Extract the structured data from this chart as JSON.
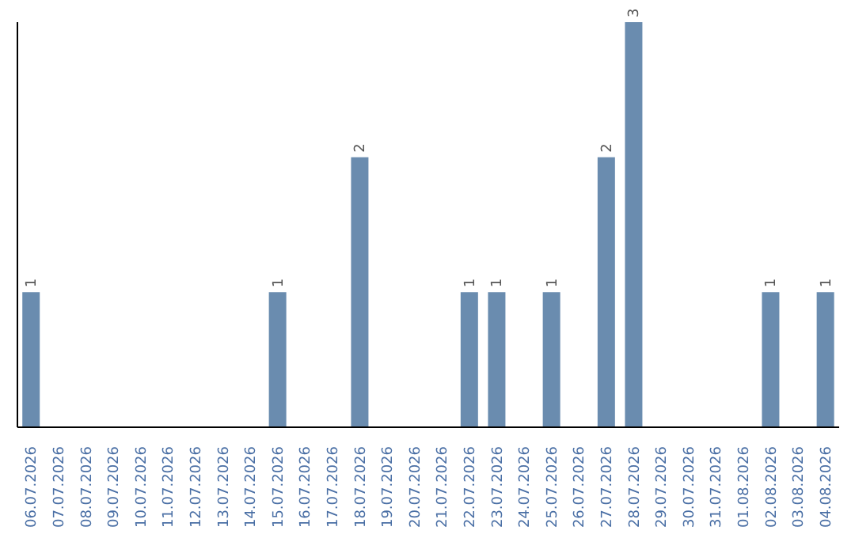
{
  "chart_data": {
    "type": "bar",
    "categories": [
      "06.07.2026",
      "07.07.2026",
      "08.07.2026",
      "09.07.2026",
      "10.07.2026",
      "11.07.2026",
      "12.07.2026",
      "13.07.2026",
      "14.07.2026",
      "15.07.2026",
      "16.07.2026",
      "17.07.2026",
      "18.07.2026",
      "19.07.2026",
      "20.07.2026",
      "21.07.2026",
      "22.07.2026",
      "23.07.2026",
      "24.07.2026",
      "25.07.2026",
      "26.07.2026",
      "27.07.2026",
      "28.07.2026",
      "29.07.2026",
      "30.07.2026",
      "31.07.2026",
      "01.08.2026",
      "02.08.2026",
      "03.08.2026",
      "04.08.2026"
    ],
    "values": [
      1,
      0,
      0,
      0,
      0,
      0,
      0,
      0,
      0,
      1,
      0,
      0,
      2,
      0,
      0,
      0,
      1,
      1,
      0,
      1,
      0,
      2,
      3,
      0,
      0,
      0,
      0,
      1,
      0,
      1
    ],
    "value_labels": [
      "1",
      null,
      null,
      null,
      null,
      null,
      null,
      null,
      null,
      "1",
      null,
      null,
      "2",
      null,
      null,
      null,
      "1",
      "1",
      null,
      "1",
      null,
      "2",
      "3",
      null,
      null,
      null,
      null,
      "1",
      null,
      "1"
    ],
    "color": "#6a8caf",
    "grid": false,
    "legend": false
  }
}
